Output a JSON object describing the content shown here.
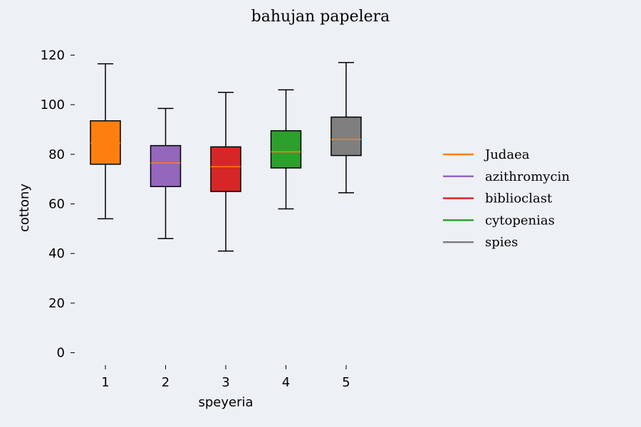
{
  "chart_data": {
    "type": "box",
    "title": "bahujan papelera",
    "xlabel": "speyeria",
    "ylabel": "cottony",
    "ylim": [
      -5,
      125
    ],
    "yticks": [
      0,
      20,
      40,
      60,
      80,
      100,
      120
    ],
    "categories": [
      "1",
      "2",
      "3",
      "4",
      "5"
    ],
    "grid": false,
    "legend_position": "right",
    "median_color": "#ff7f0e",
    "series": [
      {
        "name": "Judaea",
        "color": "#ff7f0e",
        "whisker_low": 54,
        "q1": 76,
        "median": 84.5,
        "q3": 93.5,
        "whisker_high": 116.5
      },
      {
        "name": "azithromycin",
        "color": "#9467bd",
        "whisker_low": 46,
        "q1": 67,
        "median": 76.5,
        "q3": 83.5,
        "whisker_high": 98.5
      },
      {
        "name": "biblioclast",
        "color": "#d62728",
        "whisker_low": 41,
        "q1": 65,
        "median": 75,
        "q3": 83,
        "whisker_high": 105
      },
      {
        "name": "cytopenias",
        "color": "#2ca02c",
        "whisker_low": 58,
        "q1": 74.5,
        "median": 81,
        "q3": 89.5,
        "whisker_high": 106
      },
      {
        "name": "spies",
        "color": "#7f7f7f",
        "whisker_low": 64.5,
        "q1": 79.5,
        "median": 86,
        "q3": 95,
        "whisker_high": 117
      }
    ]
  }
}
